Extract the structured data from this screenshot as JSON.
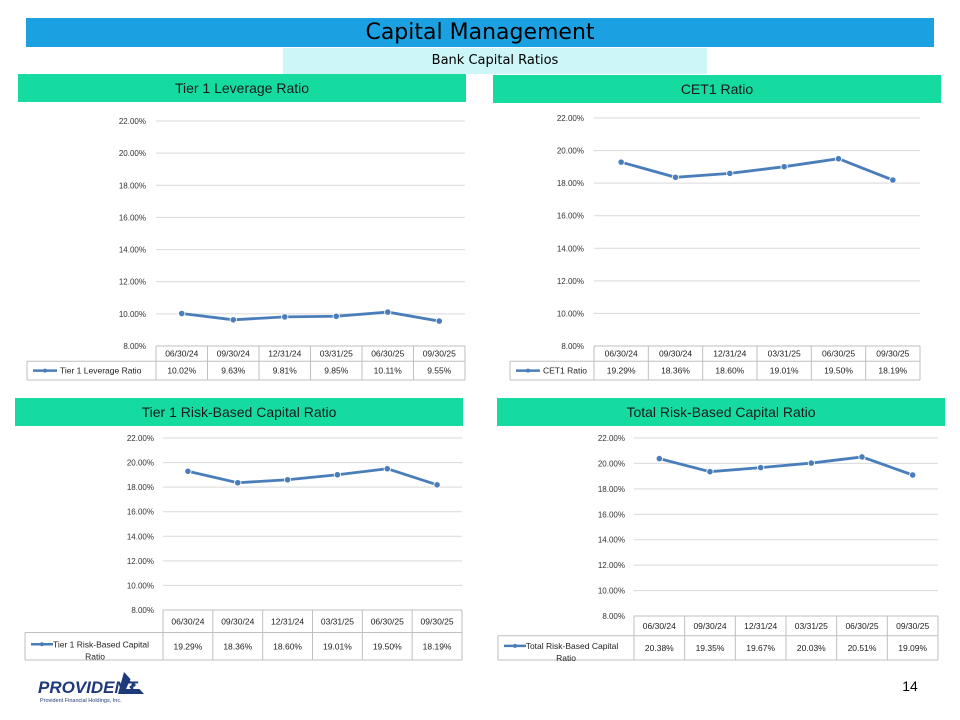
{
  "header": {
    "title": "Capital Management",
    "subtitle": "Bank Capital Ratios"
  },
  "page_number": "14",
  "logo": {
    "name": "PROVIDENT",
    "tagline": "Provident Financial Holdings, Inc."
  },
  "colors": {
    "title_bar": "#1ba1e2",
    "subtitle_bar": "#ccf6f7",
    "panel_header": "#16dba1",
    "series_line": "#4a7ebb",
    "grid": "#d9d9d9"
  },
  "chart_data": [
    {
      "type": "line",
      "title": "Tier 1 Leverage Ratio",
      "categories": [
        "06/30/24",
        "09/30/24",
        "12/31/24",
        "03/31/25",
        "06/30/25",
        "09/30/25"
      ],
      "series": [
        {
          "name": "Tier 1 Leverage Ratio",
          "values": [
            10.02,
            9.63,
            9.81,
            9.85,
            10.11,
            9.55
          ]
        }
      ],
      "table_values": [
        "10.02%",
        "9.63%",
        "9.81%",
        "9.85%",
        "10.11%",
        "9.55%"
      ],
      "y_ticks": [
        "8.00%",
        "10.00%",
        "12.00%",
        "14.00%",
        "16.00%",
        "18.00%",
        "20.00%",
        "22.00%"
      ],
      "ylim": [
        8,
        22
      ],
      "grid": true,
      "legend": "data-table"
    },
    {
      "type": "line",
      "title": "CET1 Ratio",
      "categories": [
        "06/30/24",
        "09/30/24",
        "12/31/24",
        "03/31/25",
        "06/30/25",
        "09/30/25"
      ],
      "series": [
        {
          "name": "CET1 Ratio",
          "values": [
            19.29,
            18.36,
            18.6,
            19.01,
            19.5,
            18.19
          ]
        }
      ],
      "table_values": [
        "19.29%",
        "18.36%",
        "18.60%",
        "19.01%",
        "19.50%",
        "18.19%"
      ],
      "y_ticks": [
        "8.00%",
        "10.00%",
        "12.00%",
        "14.00%",
        "16.00%",
        "18.00%",
        "20.00%",
        "22.00%"
      ],
      "ylim": [
        8,
        22
      ],
      "grid": true,
      "legend": "data-table"
    },
    {
      "type": "line",
      "title": "Tier 1 Risk-Based Capital Ratio",
      "categories": [
        "06/30/24",
        "09/30/24",
        "12/31/24",
        "03/31/25",
        "06/30/25",
        "09/30/25"
      ],
      "series": [
        {
          "name": "Tier 1 Risk-Based Capital Ratio",
          "values": [
            19.29,
            18.36,
            18.6,
            19.01,
            19.5,
            18.19
          ]
        }
      ],
      "series_label_lines": [
        "Tier 1 Risk-Based Capital",
        "Ratio"
      ],
      "table_values": [
        "19.29%",
        "18.36%",
        "18.60%",
        "19.01%",
        "19.50%",
        "18.19%"
      ],
      "y_ticks": [
        "8.00%",
        "10.00%",
        "12.00%",
        "14.00%",
        "16.00%",
        "18.00%",
        "20.00%",
        "22.00%"
      ],
      "ylim": [
        8,
        22
      ],
      "grid": true,
      "legend": "data-table"
    },
    {
      "type": "line",
      "title": "Total Risk-Based Capital Ratio",
      "categories": [
        "06/30/24",
        "09/30/24",
        "12/31/24",
        "03/31/25",
        "06/30/25",
        "09/30/25"
      ],
      "series": [
        {
          "name": "Total Risk-Based Capital Ratio",
          "values": [
            20.38,
            19.35,
            19.67,
            20.03,
            20.51,
            19.09
          ]
        }
      ],
      "series_label_lines": [
        "Total Risk-Based Capital",
        "Ratio"
      ],
      "table_values": [
        "20.38%",
        "19.35%",
        "19.67%",
        "20.03%",
        "20.51%",
        "19.09%"
      ],
      "y_ticks": [
        "8.00%",
        "10.00%",
        "12.00%",
        "14.00%",
        "16.00%",
        "18.00%",
        "20.00%",
        "22.00%"
      ],
      "ylim": [
        8,
        22
      ],
      "grid": true,
      "legend": "data-table"
    }
  ]
}
